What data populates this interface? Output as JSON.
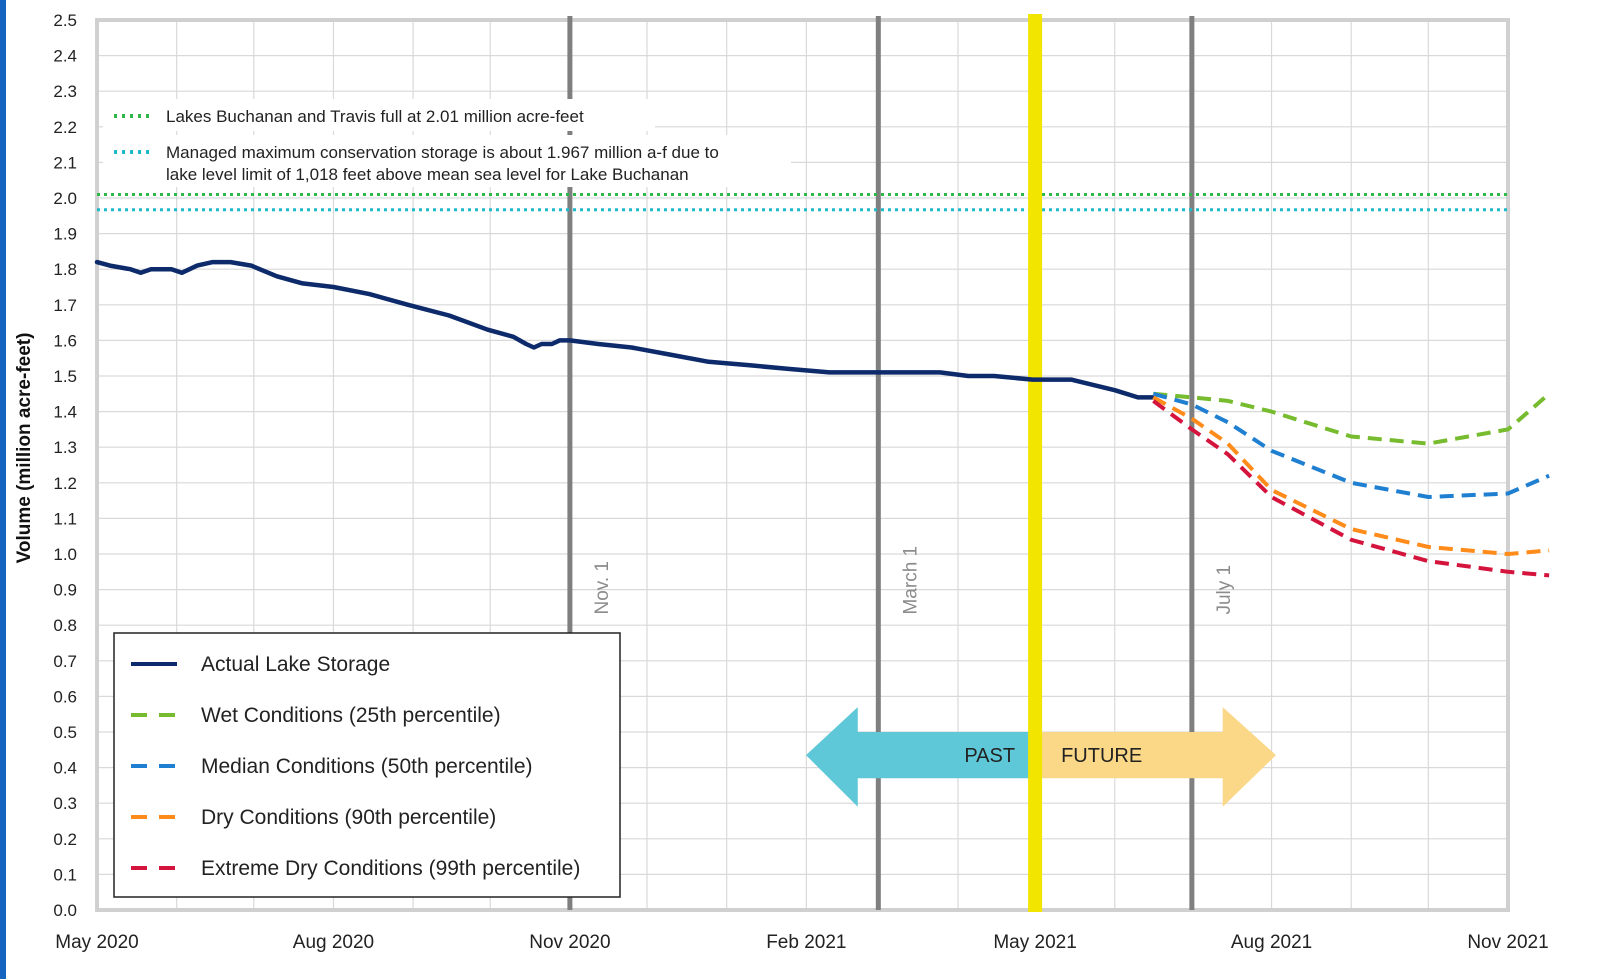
{
  "chart_data": {
    "type": "line",
    "title": "",
    "ylabel": "Volume  (million acre-feet)",
    "xlabel": "",
    "ylim": [
      0,
      2.5
    ],
    "xlim": [
      "2020-05-01",
      "2021-11-01"
    ],
    "yticks": [
      "0.0",
      "0.1",
      "0.2",
      "0.3",
      "0.4",
      "0.5",
      "0.6",
      "0.7",
      "0.8",
      "0.9",
      "1.0",
      "1.1",
      "1.2",
      "1.3",
      "1.4",
      "1.5",
      "1.6",
      "1.7",
      "1.8",
      "1.9",
      "2.0",
      "2.1",
      "2.2",
      "2.3",
      "2.4",
      "2.5"
    ],
    "xticks": [
      {
        "date": "2020-05-01",
        "label": "May 2020"
      },
      {
        "date": "2020-08-01",
        "label": "Aug 2020"
      },
      {
        "date": "2020-11-01",
        "label": "Nov 2020"
      },
      {
        "date": "2021-02-01",
        "label": "Feb 2021"
      },
      {
        "date": "2021-05-01",
        "label": "May 2021"
      },
      {
        "date": "2021-08-01",
        "label": "Aug 2021"
      },
      {
        "date": "2021-11-01",
        "label": "Nov 2021"
      }
    ],
    "grid": true,
    "vertical_markers": [
      {
        "date": "2020-11-01",
        "label": "Nov. 1",
        "color": "#7f7f7f"
      },
      {
        "date": "2021-03-01",
        "label": "March 1",
        "color": "#7f7f7f"
      },
      {
        "date": "2021-07-01",
        "label": "July 1",
        "color": "#7f7f7f"
      }
    ],
    "today_marker": {
      "date": "2021-05-01",
      "color": "#f2e600"
    },
    "reference_lines": [
      {
        "name": "Lakes Buchanan and Travis full at 2.01 million acre-feet",
        "value": 2.01,
        "color": "#2eb84a"
      },
      {
        "name": "Managed maximum conservation storage is about 1.967 million a-f due to",
        "name_line2": "lake level limit of 1,018 feet above mean sea level for Lake Buchanan",
        "value": 1.967,
        "color": "#1fb9c9"
      }
    ],
    "series": [
      {
        "name": "Actual Lake Storage",
        "style": "solid",
        "color": "#0d2a6b",
        "points": [
          [
            "2020-05-01",
            1.82
          ],
          [
            "2020-05-06",
            1.81
          ],
          [
            "2020-05-14",
            1.8
          ],
          [
            "2020-05-18",
            1.79
          ],
          [
            "2020-05-22",
            1.8
          ],
          [
            "2020-05-30",
            1.8
          ],
          [
            "2020-06-03",
            1.79
          ],
          [
            "2020-06-09",
            1.81
          ],
          [
            "2020-06-15",
            1.82
          ],
          [
            "2020-06-22",
            1.82
          ],
          [
            "2020-06-30",
            1.81
          ],
          [
            "2020-07-10",
            1.78
          ],
          [
            "2020-07-20",
            1.76
          ],
          [
            "2020-08-01",
            1.75
          ],
          [
            "2020-08-15",
            1.73
          ],
          [
            "2020-08-30",
            1.7
          ],
          [
            "2020-09-15",
            1.67
          ],
          [
            "2020-09-30",
            1.63
          ],
          [
            "2020-10-10",
            1.61
          ],
          [
            "2020-10-15",
            1.59
          ],
          [
            "2020-10-18",
            1.58
          ],
          [
            "2020-10-21",
            1.59
          ],
          [
            "2020-10-25",
            1.59
          ],
          [
            "2020-10-28",
            1.6
          ],
          [
            "2020-11-01",
            1.6
          ],
          [
            "2020-11-12",
            1.59
          ],
          [
            "2020-11-25",
            1.58
          ],
          [
            "2020-12-10",
            1.56
          ],
          [
            "2020-12-25",
            1.54
          ],
          [
            "2021-01-10",
            1.53
          ],
          [
            "2021-01-25",
            1.52
          ],
          [
            "2021-02-10",
            1.51
          ],
          [
            "2021-02-25",
            1.51
          ],
          [
            "2021-03-10",
            1.51
          ],
          [
            "2021-03-25",
            1.51
          ],
          [
            "2021-04-05",
            1.5
          ],
          [
            "2021-04-15",
            1.5
          ],
          [
            "2021-04-30",
            1.49
          ],
          [
            "2021-05-15",
            1.49
          ],
          [
            "2021-06-01",
            1.46
          ],
          [
            "2021-06-10",
            1.44
          ],
          [
            "2021-06-16",
            1.44
          ]
        ]
      },
      {
        "name": "Wet Conditions (25th percentile)",
        "style": "dashed",
        "color": "#77bb2e",
        "points": [
          [
            "2021-06-16",
            1.45
          ],
          [
            "2021-07-01",
            1.44
          ],
          [
            "2021-07-15",
            1.43
          ],
          [
            "2021-08-01",
            1.4
          ],
          [
            "2021-09-01",
            1.33
          ],
          [
            "2021-10-01",
            1.31
          ],
          [
            "2021-11-01",
            1.35
          ],
          [
            "2021-11-17",
            1.45
          ]
        ]
      },
      {
        "name": "Median Conditions (50th percentile)",
        "style": "dashed",
        "color": "#1f7fd1",
        "points": [
          [
            "2021-06-16",
            1.45
          ],
          [
            "2021-07-01",
            1.42
          ],
          [
            "2021-07-15",
            1.37
          ],
          [
            "2021-08-01",
            1.29
          ],
          [
            "2021-09-01",
            1.2
          ],
          [
            "2021-10-01",
            1.16
          ],
          [
            "2021-11-01",
            1.17
          ],
          [
            "2021-11-17",
            1.22
          ]
        ]
      },
      {
        "name": "Dry Conditions (90th percentile)",
        "style": "dashed",
        "color": "#ff8c1a",
        "points": [
          [
            "2021-06-16",
            1.44
          ],
          [
            "2021-07-01",
            1.38
          ],
          [
            "2021-07-15",
            1.31
          ],
          [
            "2021-08-01",
            1.18
          ],
          [
            "2021-09-01",
            1.07
          ],
          [
            "2021-10-01",
            1.02
          ],
          [
            "2021-11-01",
            1.0
          ],
          [
            "2021-11-17",
            1.01
          ]
        ]
      },
      {
        "name": "Extreme Dry Conditions (99th percentile)",
        "style": "dashed",
        "color": "#d4143c",
        "points": [
          [
            "2021-06-16",
            1.43
          ],
          [
            "2021-07-01",
            1.35
          ],
          [
            "2021-07-15",
            1.28
          ],
          [
            "2021-08-01",
            1.16
          ],
          [
            "2021-09-01",
            1.04
          ],
          [
            "2021-10-01",
            0.98
          ],
          [
            "2021-11-01",
            0.95
          ],
          [
            "2021-11-17",
            0.94
          ]
        ]
      }
    ],
    "annotations": {
      "past_label": "PAST",
      "future_label": "FUTURE",
      "past_color": "#5ec7d8",
      "future_color": "#fbd888"
    },
    "legend_placement": "bottom-left"
  }
}
